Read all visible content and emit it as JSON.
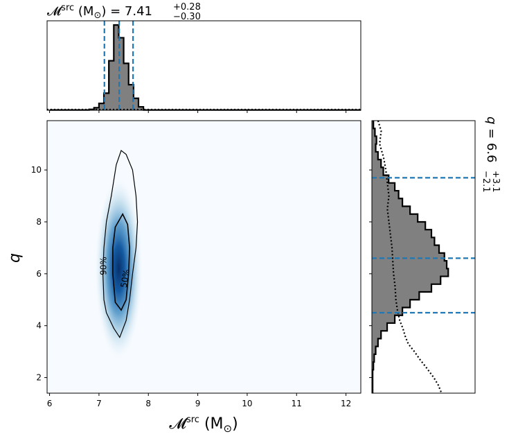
{
  "chart_data": [
    {
      "type": "histogram",
      "panel": "top marginal",
      "title": {
        "symbol": "𝓜",
        "sup": "src",
        "unit": "(M",
        "unit_sub": "⊙",
        "unit_close": ")",
        "eq": " = 7.41",
        "plus": "+0.28",
        "minus": "−0.30"
      },
      "x_range": [
        5.95,
        12.3
      ],
      "bins": [
        {
          "x0": 6.0,
          "x1": 6.8,
          "y": 0.003
        },
        {
          "x0": 6.8,
          "x1": 6.9,
          "y": 0.01
        },
        {
          "x0": 6.9,
          "x1": 7.0,
          "y": 0.03
        },
        {
          "x0": 7.0,
          "x1": 7.1,
          "y": 0.08
        },
        {
          "x0": 7.1,
          "x1": 7.2,
          "y": 0.2
        },
        {
          "x0": 7.2,
          "x1": 7.3,
          "y": 0.58
        },
        {
          "x0": 7.3,
          "x1": 7.4,
          "y": 1.0
        },
        {
          "x0": 7.4,
          "x1": 7.5,
          "y": 0.85
        },
        {
          "x0": 7.5,
          "x1": 7.6,
          "y": 0.55
        },
        {
          "x0": 7.6,
          "x1": 7.7,
          "y": 0.3
        },
        {
          "x0": 7.7,
          "x1": 7.8,
          "y": 0.14
        },
        {
          "x0": 7.8,
          "x1": 7.9,
          "y": 0.04
        },
        {
          "x0": 7.9,
          "x1": 12.3,
          "y": 0.003
        }
      ],
      "quantile_lines": [
        7.11,
        7.41,
        7.69
      ],
      "prior_level": 0.008
    },
    {
      "type": "heatmap",
      "panel": "main 2D density",
      "xlabel": {
        "symbol": "𝓜",
        "sup": "src",
        "unit": "(M",
        "unit_sub": "⊙",
        "unit_close": ")"
      },
      "ylabel": "q",
      "x_range": [
        5.95,
        12.3
      ],
      "y_range": [
        1.4,
        11.9
      ],
      "x_ticks": [
        "6",
        "7",
        "8",
        "9",
        "10",
        "11",
        "12"
      ],
      "y_ticks": [
        "2",
        "4",
        "6",
        "8",
        "10"
      ],
      "contours": [
        {
          "label": "90%",
          "points": [
            [
              7.45,
              10.75
            ],
            [
              7.55,
              10.6
            ],
            [
              7.68,
              10.0
            ],
            [
              7.75,
              9.0
            ],
            [
              7.78,
              8.0
            ],
            [
              7.75,
              7.0
            ],
            [
              7.68,
              6.0
            ],
            [
              7.62,
              5.0
            ],
            [
              7.55,
              4.2
            ],
            [
              7.42,
              3.55
            ],
            [
              7.3,
              3.9
            ],
            [
              7.15,
              4.5
            ],
            [
              7.1,
              5.0
            ],
            [
              7.08,
              6.0
            ],
            [
              7.1,
              7.0
            ],
            [
              7.15,
              8.0
            ],
            [
              7.25,
              9.0
            ],
            [
              7.35,
              10.2
            ]
          ]
        },
        {
          "label": "50%",
          "points": [
            [
              7.48,
              8.3
            ],
            [
              7.58,
              7.9
            ],
            [
              7.62,
              7.0
            ],
            [
              7.6,
              6.0
            ],
            [
              7.55,
              5.0
            ],
            [
              7.45,
              4.6
            ],
            [
              7.33,
              4.9
            ],
            [
              7.28,
              6.0
            ],
            [
              7.28,
              7.0
            ],
            [
              7.33,
              7.8
            ]
          ]
        }
      ],
      "density_peak": [
        7.4,
        6.2
      ]
    },
    {
      "type": "histogram",
      "orientation": "horizontal",
      "panel": "right marginal",
      "title": {
        "symbol": "q",
        "eq": " = 6.6",
        "plus": "+3.1",
        "minus": "−2.1"
      },
      "y_range": [
        1.4,
        11.9
      ],
      "bins": [
        {
          "y0": 11.6,
          "y1": 11.9,
          "x": 0.02
        },
        {
          "y0": 11.3,
          "y1": 11.6,
          "x": 0.04
        },
        {
          "y0": 11.0,
          "y1": 11.3,
          "x": 0.06
        },
        {
          "y0": 10.7,
          "y1": 11.0,
          "x": 0.05
        },
        {
          "y0": 10.4,
          "y1": 10.7,
          "x": 0.08
        },
        {
          "y0": 10.1,
          "y1": 10.4,
          "x": 0.12
        },
        {
          "y0": 9.8,
          "y1": 10.1,
          "x": 0.15
        },
        {
          "y0": 9.5,
          "y1": 9.8,
          "x": 0.22
        },
        {
          "y0": 9.2,
          "y1": 9.5,
          "x": 0.3
        },
        {
          "y0": 8.9,
          "y1": 9.2,
          "x": 0.35
        },
        {
          "y0": 8.6,
          "y1": 8.9,
          "x": 0.4
        },
        {
          "y0": 8.3,
          "y1": 8.6,
          "x": 0.5
        },
        {
          "y0": 8.0,
          "y1": 8.3,
          "x": 0.6
        },
        {
          "y0": 7.7,
          "y1": 8.0,
          "x": 0.7
        },
        {
          "y0": 7.4,
          "y1": 7.7,
          "x": 0.78
        },
        {
          "y0": 7.1,
          "y1": 7.4,
          "x": 0.82
        },
        {
          "y0": 6.8,
          "y1": 7.1,
          "x": 0.88
        },
        {
          "y0": 6.5,
          "y1": 6.8,
          "x": 0.95
        },
        {
          "y0": 6.2,
          "y1": 6.5,
          "x": 0.98
        },
        {
          "y0": 5.9,
          "y1": 6.2,
          "x": 1.0
        },
        {
          "y0": 5.6,
          "y1": 5.9,
          "x": 0.9
        },
        {
          "y0": 5.3,
          "y1": 5.6,
          "x": 0.78
        },
        {
          "y0": 5.0,
          "y1": 5.3,
          "x": 0.62
        },
        {
          "y0": 4.7,
          "y1": 5.0,
          "x": 0.5
        },
        {
          "y0": 4.4,
          "y1": 4.7,
          "x": 0.4
        },
        {
          "y0": 4.1,
          "y1": 4.4,
          "x": 0.3
        },
        {
          "y0": 3.8,
          "y1": 4.1,
          "x": 0.2
        },
        {
          "y0": 3.5,
          "y1": 3.8,
          "x": 0.12
        },
        {
          "y0": 3.2,
          "y1": 3.5,
          "x": 0.08
        },
        {
          "y0": 2.9,
          "y1": 3.2,
          "x": 0.05
        },
        {
          "y0": 2.6,
          "y1": 2.9,
          "x": 0.03
        },
        {
          "y0": 2.3,
          "y1": 2.6,
          "x": 0.02
        },
        {
          "y0": 1.4,
          "y1": 2.3,
          "x": 0.01
        }
      ],
      "quantile_lines": [
        4.5,
        6.6,
        9.7
      ],
      "prior_curve": [
        [
          0.08,
          11.9
        ],
        [
          0.12,
          11.5
        ],
        [
          0.1,
          11.0
        ],
        [
          0.15,
          10.5
        ],
        [
          0.18,
          10.0
        ],
        [
          0.2,
          9.5
        ],
        [
          0.22,
          9.0
        ],
        [
          0.2,
          8.5
        ],
        [
          0.22,
          8.0
        ],
        [
          0.24,
          7.5
        ],
        [
          0.26,
          7.0
        ],
        [
          0.27,
          6.5
        ],
        [
          0.28,
          6.0
        ],
        [
          0.3,
          5.5
        ],
        [
          0.31,
          5.0
        ],
        [
          0.33,
          4.6
        ],
        [
          0.36,
          4.2
        ],
        [
          0.4,
          3.9
        ],
        [
          0.43,
          3.6
        ],
        [
          0.47,
          3.3
        ],
        [
          0.55,
          3.0
        ],
        [
          0.62,
          2.7
        ],
        [
          0.7,
          2.4
        ],
        [
          0.8,
          2.0
        ],
        [
          0.86,
          1.7
        ],
        [
          0.9,
          1.4
        ]
      ]
    }
  ],
  "colors": {
    "fill": "#808080",
    "quantile": "#1f77b4",
    "density": "#08519c"
  }
}
